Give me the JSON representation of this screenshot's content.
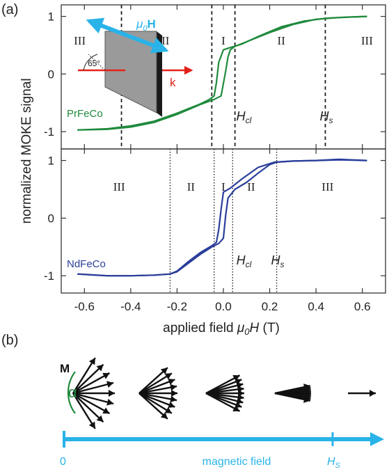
{
  "figure": {
    "panel_a_label": "(a)",
    "panel_b_label": "(b)"
  },
  "chart_data": [
    {
      "type": "line",
      "panel": "top",
      "title": "",
      "xlabel": "applied field",
      "xlabel_symbol": "μ",
      "xlabel_sub": "0",
      "xlabel_var": "H",
      "xlabel_unit": " (T)",
      "ylabel": "normalized MOKE signal",
      "xlim": [
        -0.7,
        0.7
      ],
      "ylim": [
        -1.3,
        1.2
      ],
      "xticks": [
        -0.6,
        -0.4,
        -0.2,
        0.0,
        0.2,
        0.4,
        0.6
      ],
      "yticks": [
        -1,
        0,
        1
      ],
      "ytick_labels": [
        "-1",
        "0",
        "1"
      ],
      "grid": false,
      "color": "#1f8a3c",
      "series": [
        {
          "name": "PrFeCo",
          "branch": "descending",
          "x": [
            0.62,
            0.55,
            0.45,
            0.35,
            0.25,
            0.15,
            0.08,
            0.03,
            0.0,
            -0.02,
            -0.03,
            -0.04,
            -0.06,
            -0.1,
            -0.2,
            -0.3,
            -0.4,
            -0.5,
            -0.63
          ],
          "y": [
            1.0,
            0.99,
            0.97,
            0.92,
            0.82,
            0.65,
            0.52,
            0.46,
            0.42,
            0.2,
            -0.15,
            -0.38,
            -0.44,
            -0.52,
            -0.68,
            -0.82,
            -0.9,
            -0.95,
            -0.97
          ]
        },
        {
          "name": "",
          "branch": "ascending",
          "x": [
            -0.63,
            -0.5,
            -0.4,
            -0.3,
            -0.2,
            -0.1,
            -0.04,
            -0.01,
            0.01,
            0.02,
            0.03,
            0.05,
            0.1,
            0.2,
            0.3,
            0.4,
            0.5,
            0.62
          ],
          "y": [
            -0.97,
            -0.96,
            -0.92,
            -0.84,
            -0.7,
            -0.53,
            -0.44,
            -0.38,
            0.05,
            0.3,
            0.42,
            0.48,
            0.56,
            0.72,
            0.86,
            0.95,
            0.98,
            1.0
          ]
        }
      ],
      "region_lines_x": [
        -0.44,
        -0.05,
        0.05,
        0.44
      ],
      "region_line_style": "dashed",
      "regions": [
        {
          "label": "III",
          "x": -0.62
        },
        {
          "label": "II",
          "x": -0.25
        },
        {
          "label": "I",
          "x": 0.0
        },
        {
          "label": "II",
          "x": 0.25
        },
        {
          "label": "III",
          "x": 0.62
        }
      ],
      "annotations": [
        {
          "text": "H",
          "sub": "cl",
          "x": 0.08,
          "y": -0.78
        },
        {
          "text": "H",
          "sub": "s",
          "x": 0.44,
          "y": -0.78
        }
      ]
    },
    {
      "type": "line",
      "panel": "bottom",
      "title": "",
      "xlim": [
        -0.7,
        0.7
      ],
      "ylim": [
        -1.3,
        1.2
      ],
      "xticks": [
        -0.6,
        -0.4,
        -0.2,
        0.0,
        0.2,
        0.4,
        0.6
      ],
      "xtick_labels": [
        "-0.6",
        "-0.4",
        "-0.2",
        "0.0",
        "0.2",
        "0.4",
        "0.6"
      ],
      "yticks": [
        -1,
        0,
        1
      ],
      "ytick_labels": [
        "-1",
        "0",
        "1"
      ],
      "grid": false,
      "color": "#2a3e9a",
      "series": [
        {
          "name": "NdFeCo",
          "branch": "descending",
          "x": [
            0.62,
            0.5,
            0.4,
            0.3,
            0.22,
            0.15,
            0.08,
            0.03,
            0.0,
            -0.01,
            -0.02,
            -0.03,
            -0.05,
            -0.1,
            -0.15,
            -0.2,
            -0.23,
            -0.3,
            -0.4,
            -0.5,
            -0.63
          ],
          "y": [
            1.0,
            1.01,
            1.0,
            0.99,
            0.97,
            0.88,
            0.68,
            0.52,
            0.45,
            0.15,
            -0.2,
            -0.42,
            -0.48,
            -0.6,
            -0.75,
            -0.92,
            -0.97,
            -0.99,
            -1.0,
            -1.0,
            -0.97
          ]
        },
        {
          "name": "",
          "branch": "ascending",
          "x": [
            -0.63,
            -0.5,
            -0.4,
            -0.3,
            -0.23,
            -0.2,
            -0.15,
            -0.1,
            -0.05,
            -0.02,
            0.0,
            0.01,
            0.02,
            0.05,
            0.1,
            0.15,
            0.2,
            0.23,
            0.3,
            0.4,
            0.5,
            0.62
          ],
          "y": [
            -0.97,
            -1.0,
            -1.0,
            -0.99,
            -0.97,
            -0.93,
            -0.78,
            -0.63,
            -0.5,
            -0.44,
            -0.35,
            0.05,
            0.35,
            0.5,
            0.62,
            0.78,
            0.93,
            0.97,
            0.99,
            1.0,
            1.02,
            1.0
          ]
        }
      ],
      "region_lines_x": [
        -0.23,
        -0.04,
        0.04,
        0.23
      ],
      "region_line_style": "dotted",
      "regions": [
        {
          "label": "III",
          "x": -0.45
        },
        {
          "label": "II",
          "x": -0.14
        },
        {
          "label": "I",
          "x": 0.0
        },
        {
          "label": "II",
          "x": 0.12
        },
        {
          "label": "III",
          "x": 0.45
        }
      ],
      "annotations": [
        {
          "text": "H",
          "sub": "cl",
          "x": 0.08,
          "y": -0.78
        },
        {
          "text": "H",
          "sub": "s",
          "x": 0.23,
          "y": -0.78
        }
      ]
    }
  ],
  "inset": {
    "field_label_symbol": "μ",
    "field_label_sub": "0",
    "field_label_bold": "H",
    "angle_label": "65°",
    "k_label": "k",
    "field_color": "#29b3e8",
    "k_color": "#e32119"
  },
  "panel_b": {
    "m_label": "M",
    "alpha_label": "α",
    "fan_half_angles_deg": [
      58,
      42,
      28,
      12,
      0
    ],
    "axis_start_label": "0",
    "axis_middle_label": "magnetic field",
    "axis_end_label": "H",
    "axis_end_sub": "S",
    "axis_color": "#29b3e8",
    "alpha_color": "#1f8a3c"
  }
}
